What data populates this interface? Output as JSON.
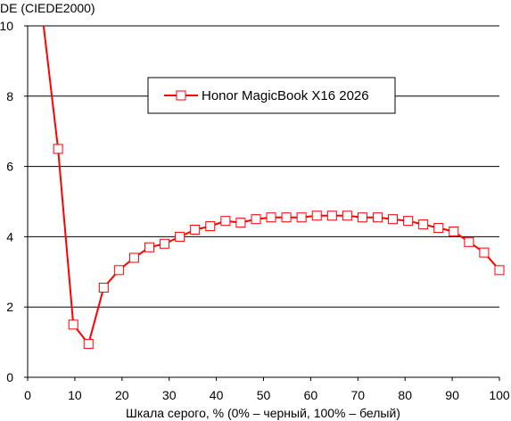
{
  "chart_data": {
    "type": "line",
    "title": "",
    "xlabel": "Шкала серого, % (0% – черный, 100% – белый)",
    "ylabel": "DE (CIEDE2000)",
    "xlim": [
      0,
      100
    ],
    "ylim": [
      0,
      10
    ],
    "xticks": [
      0,
      10,
      20,
      30,
      40,
      50,
      60,
      70,
      80,
      90,
      100
    ],
    "yticks": [
      0,
      2,
      4,
      6,
      8,
      10
    ],
    "grid": "horizontal",
    "legend_position": "top-center",
    "series": [
      {
        "name": "Honor MagicBook X16 2026",
        "color": "#ff0000",
        "marker": "square",
        "line_start": [
          3.2,
          10.2
        ],
        "x": [
          6.45,
          9.68,
          12.9,
          16.13,
          19.35,
          22.58,
          25.81,
          29.03,
          32.26,
          35.48,
          38.71,
          41.94,
          45.16,
          48.39,
          51.61,
          54.84,
          58.06,
          61.29,
          64.52,
          67.74,
          70.97,
          74.19,
          77.42,
          80.65,
          83.87,
          87.1,
          90.32,
          93.55,
          96.77,
          100
        ],
        "y": [
          6.5,
          1.5,
          0.95,
          2.55,
          3.05,
          3.4,
          3.7,
          3.8,
          4.0,
          4.2,
          4.3,
          4.45,
          4.4,
          4.5,
          4.55,
          4.55,
          4.55,
          4.6,
          4.6,
          4.6,
          4.55,
          4.55,
          4.5,
          4.45,
          4.35,
          4.25,
          4.15,
          3.85,
          3.55,
          3.05
        ]
      }
    ]
  }
}
